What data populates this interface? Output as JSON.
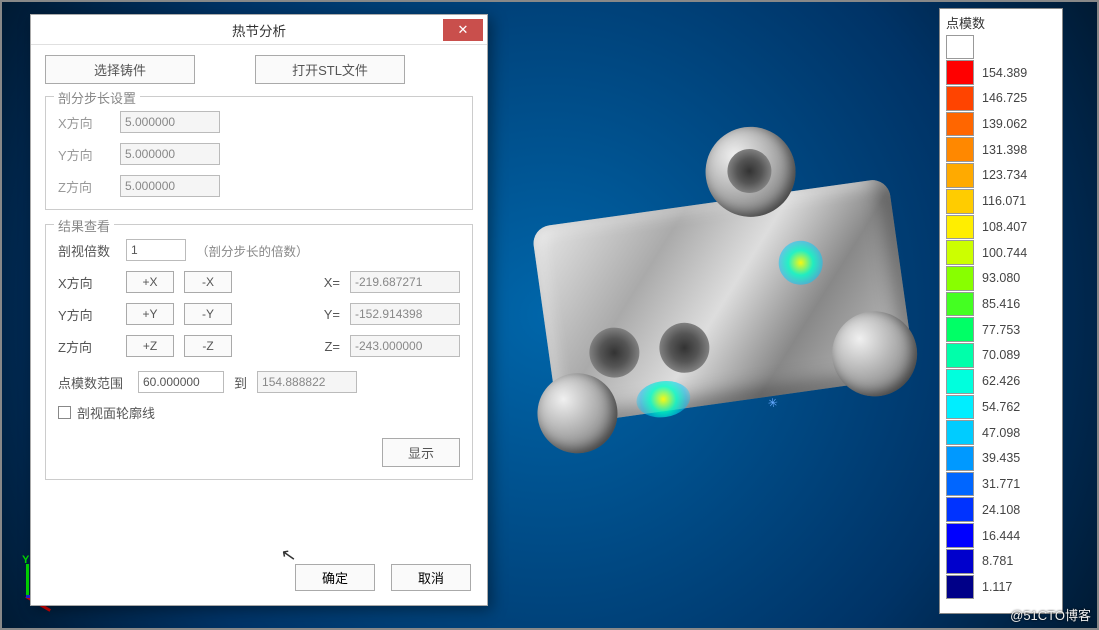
{
  "dialog": {
    "title": "热节分析",
    "close_glyph": "✕",
    "top_buttons": {
      "select_casting": "选择铸件",
      "open_stl": "打开STL文件"
    },
    "step_group": {
      "legend": "剖分步长设置",
      "x_label": "X方向",
      "x_value": "5.000000",
      "y_label": "Y方向",
      "y_value": "5.000000",
      "z_label": "Z方向",
      "z_value": "5.000000"
    },
    "result_group": {
      "legend": "结果查看",
      "multiple_label": "剖视倍数",
      "multiple_value": "1",
      "multiple_note": "（剖分步长的倍数）",
      "x_label": "X方向",
      "x_plus": "+X",
      "x_minus": "-X",
      "x_eq": "X=",
      "x_value": "-219.687271",
      "y_label": "Y方向",
      "y_plus": "+Y",
      "y_minus": "-Y",
      "y_eq": "Y=",
      "y_value": "-152.914398",
      "z_label": "Z方向",
      "z_plus": "+Z",
      "z_minus": "-Z",
      "z_eq": "Z=",
      "z_value": "-243.000000",
      "range_label": "点模数范围",
      "range_from": "60.000000",
      "range_to_label": "到",
      "range_to": "154.888822",
      "outline_checkbox": "剖视面轮廓线",
      "display_button": "显示"
    },
    "ok": "确定",
    "cancel": "取消"
  },
  "legend": {
    "title": "点模数",
    "items": [
      {
        "color": "#ffffff",
        "value": ""
      },
      {
        "color": "#ff0000",
        "value": "154.389"
      },
      {
        "color": "#ff4400",
        "value": "146.725"
      },
      {
        "color": "#ff6600",
        "value": "139.062"
      },
      {
        "color": "#ff8800",
        "value": "131.398"
      },
      {
        "color": "#ffaa00",
        "value": "123.734"
      },
      {
        "color": "#ffcc00",
        "value": "116.071"
      },
      {
        "color": "#ffee00",
        "value": "108.407"
      },
      {
        "color": "#ccff00",
        "value": "100.744"
      },
      {
        "color": "#88ff00",
        "value": "93.080"
      },
      {
        "color": "#44ff22",
        "value": "85.416"
      },
      {
        "color": "#00ff66",
        "value": "77.753"
      },
      {
        "color": "#00ffaa",
        "value": "70.089"
      },
      {
        "color": "#00ffdd",
        "value": "62.426"
      },
      {
        "color": "#00eeff",
        "value": "54.762"
      },
      {
        "color": "#00ccff",
        "value": "47.098"
      },
      {
        "color": "#0099ff",
        "value": "39.435"
      },
      {
        "color": "#0066ff",
        "value": "31.771"
      },
      {
        "color": "#0033ff",
        "value": "24.108"
      },
      {
        "color": "#0000ff",
        "value": "16.444"
      },
      {
        "color": "#0000cc",
        "value": "8.781"
      },
      {
        "color": "#000088",
        "value": "1.117"
      }
    ]
  },
  "watermark": "@51CTO博客",
  "axes": {
    "y": "Y",
    "z": "Z"
  }
}
